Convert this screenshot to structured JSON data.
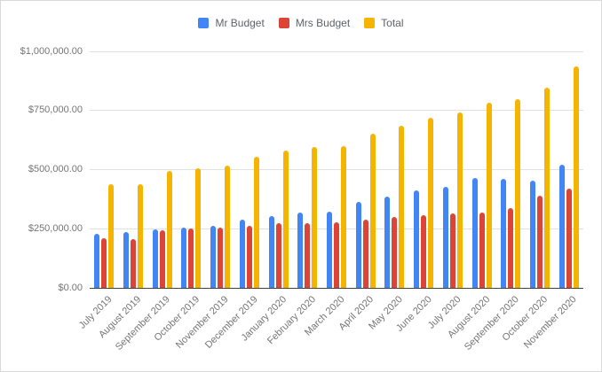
{
  "chart": {
    "legend": [
      {
        "label": "Mr Budget",
        "color": "#4285F4"
      },
      {
        "label": "Mrs Budget",
        "color": "#DB4437"
      },
      {
        "label": "Total",
        "color": "#F4B400"
      }
    ]
  },
  "chart_data": {
    "type": "bar",
    "title": "",
    "xlabel": "",
    "ylabel": "",
    "categories": [
      "July 2019",
      "August 2019",
      "September 2019",
      "October 2019",
      "November 2019",
      "December 2019",
      "January 2020",
      "February 2020",
      "March 2020",
      "April 2020",
      "May 2020",
      "June 2020",
      "July 2020",
      "August 2020",
      "September 2020",
      "October 2020",
      "November 2020"
    ],
    "series": [
      {
        "name": "Mr Budget",
        "color": "#4285F4",
        "values": [
          230000,
          235000,
          248000,
          256000,
          262000,
          290000,
          305000,
          320000,
          322000,
          362000,
          386000,
          413000,
          426000,
          464000,
          461000,
          455000,
          519000
        ]
      },
      {
        "name": "Mrs Budget",
        "color": "#DB4437",
        "values": [
          210000,
          205000,
          245000,
          250000,
          253000,
          263000,
          275000,
          275000,
          277000,
          290000,
          300000,
          306000,
          315000,
          318000,
          336000,
          391000,
          418000
        ]
      },
      {
        "name": "Total",
        "color": "#F4B400",
        "values": [
          440000,
          440000,
          493000,
          506000,
          515000,
          553000,
          580000,
          595000,
          599000,
          652000,
          686000,
          719000,
          741000,
          782000,
          797000,
          846000,
          937000
        ]
      }
    ],
    "ylim": [
      0,
      1000000
    ],
    "y_ticks": [
      0,
      250000,
      500000,
      750000,
      1000000
    ],
    "y_tick_labels": [
      "$0.00",
      "$250,000.00",
      "$500,000.00",
      "$750,000.00",
      "$1,000,000.00"
    ],
    "grid": true,
    "legend_position": "top",
    "x_label_rotation_deg": -45
  }
}
